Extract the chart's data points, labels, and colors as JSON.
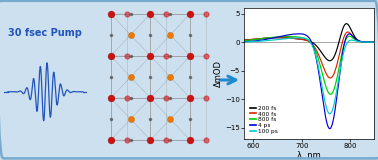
{
  "bg_color": "#cce0f0",
  "border_color": "#77aacc",
  "pump_text": "30 fsec Pump",
  "pump_color": "#2255bb",
  "arrow_color": "#2288cc",
  "xlim": [
    580,
    850
  ],
  "ylim": [
    -17,
    6
  ],
  "xlabel": "λ  nm",
  "ylabel": "ΔmOD",
  "yticks": [
    -15,
    -10,
    -5,
    0,
    5
  ],
  "xticks": [
    600,
    700,
    800
  ],
  "legend_labels": [
    "200 fs",
    "400 fs",
    "800 fs",
    "4 ps",
    "100 ps"
  ],
  "legend_colors": [
    "black",
    "#dd2200",
    "#00cc00",
    "#0000dd",
    "#00cccc"
  ],
  "curve_colors": [
    "black",
    "#dd2200",
    "#00cc00",
    "#0000dd",
    "#00cccc"
  ],
  "grid_color": "#999999",
  "crystal_red": "#cc1111",
  "crystal_orange": "#ee7700",
  "crystal_gray": "#999999",
  "crystal_dark": "#555555"
}
